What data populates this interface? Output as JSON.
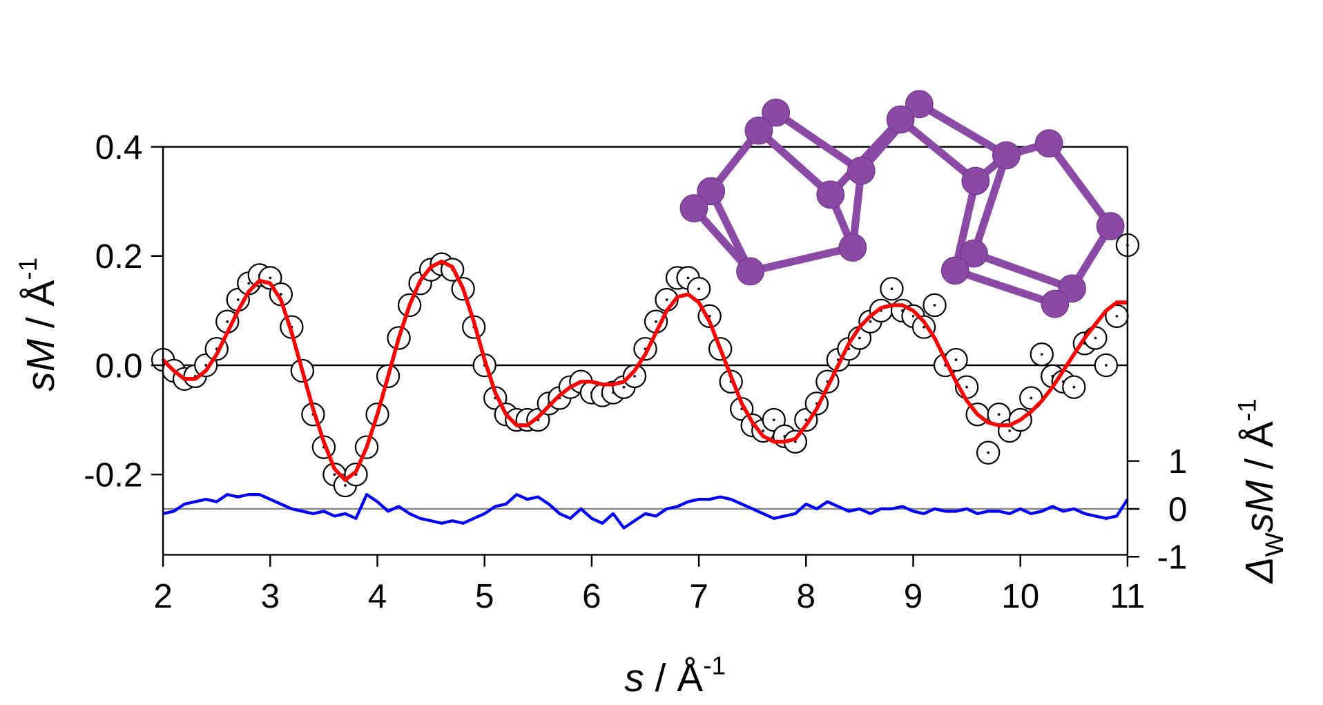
{
  "chart_data": {
    "type": "scatter",
    "x_label": {
      "italic": "s",
      "unit": " / Å",
      "exponent": "-1"
    },
    "y_label": {
      "italic": "sM",
      "unit": " / Å",
      "exponent": "-1"
    },
    "y2_label": {
      "symbol": "Δ",
      "subscript": "W",
      "italic": "sM",
      "unit": " / Å",
      "exponent": "-1"
    },
    "xlim": [
      2,
      11
    ],
    "xticks": [
      2,
      3,
      4,
      5,
      6,
      7,
      8,
      9,
      10,
      11
    ],
    "ylim": [
      -0.347,
      0.4
    ],
    "yticks": [
      0.4,
      0.2,
      {
        "value": 0,
        "label": "0.0"
      },
      -0.2
    ],
    "y2lim": [
      -0.96,
      7.57
    ],
    "y2ticks": [
      1,
      0,
      -1
    ],
    "x": [
      2.0,
      2.1,
      2.2,
      2.3,
      2.4,
      2.5,
      2.6,
      2.7,
      2.8,
      2.9,
      3.0,
      3.1,
      3.2,
      3.3,
      3.4,
      3.5,
      3.6,
      3.7,
      3.8,
      3.9,
      4.0,
      4.1,
      4.2,
      4.3,
      4.4,
      4.5,
      4.6,
      4.7,
      4.8,
      4.9,
      5.0,
      5.1,
      5.2,
      5.3,
      5.4,
      5.5,
      5.6,
      5.7,
      5.8,
      5.9,
      6.0,
      6.1,
      6.2,
      6.3,
      6.4,
      6.5,
      6.6,
      6.7,
      6.8,
      6.9,
      7.0,
      7.1,
      7.2,
      7.3,
      7.4,
      7.5,
      7.6,
      7.7,
      7.8,
      7.9,
      8.0,
      8.1,
      8.2,
      8.3,
      8.4,
      8.5,
      8.6,
      8.7,
      8.8,
      8.9,
      9.0,
      9.1,
      9.2,
      9.3,
      9.4,
      9.5,
      9.6,
      9.7,
      9.8,
      9.9,
      10.0,
      10.1,
      10.2,
      10.3,
      10.4,
      10.5,
      10.6,
      10.7,
      10.8,
      10.9,
      11.0
    ],
    "series": [
      {
        "style": "circles",
        "color": "#000000",
        "values": [
          0.01,
          -0.01,
          -0.025,
          -0.02,
          0.0,
          0.03,
          0.08,
          0.12,
          0.15,
          0.165,
          0.16,
          0.13,
          0.07,
          -0.01,
          -0.09,
          -0.15,
          -0.2,
          -0.22,
          -0.2,
          -0.15,
          -0.09,
          -0.02,
          0.05,
          0.11,
          0.15,
          0.175,
          0.185,
          0.175,
          0.14,
          0.07,
          0.0,
          -0.06,
          -0.09,
          -0.1,
          -0.1,
          -0.1,
          -0.07,
          -0.06,
          -0.04,
          -0.03,
          -0.05,
          -0.055,
          -0.05,
          -0.04,
          -0.02,
          0.03,
          0.08,
          0.12,
          0.16,
          0.16,
          0.14,
          0.09,
          0.03,
          -0.03,
          -0.08,
          -0.11,
          -0.12,
          -0.1,
          -0.13,
          -0.14,
          -0.1,
          -0.07,
          -0.03,
          0.01,
          0.03,
          0.05,
          0.08,
          0.1,
          0.14,
          0.1,
          0.09,
          0.07,
          0.11,
          0.0,
          0.01,
          -0.04,
          -0.09,
          -0.16,
          -0.09,
          -0.12,
          -0.1,
          -0.06,
          0.02,
          -0.02,
          -0.03,
          -0.04,
          0.04,
          0.05,
          0.0,
          0.09,
          0.22
        ]
      },
      {
        "style": "line",
        "color": "#ff0000",
        "values": [
          0.01,
          -0.01,
          -0.025,
          -0.025,
          -0.01,
          0.02,
          0.06,
          0.1,
          0.135,
          0.155,
          0.15,
          0.12,
          0.06,
          -0.01,
          -0.08,
          -0.14,
          -0.19,
          -0.21,
          -0.195,
          -0.15,
          -0.09,
          -0.02,
          0.05,
          0.11,
          0.155,
          0.18,
          0.19,
          0.18,
          0.14,
          0.08,
          0.01,
          -0.05,
          -0.09,
          -0.11,
          -0.11,
          -0.095,
          -0.075,
          -0.055,
          -0.04,
          -0.03,
          -0.03,
          -0.035,
          -0.035,
          -0.03,
          -0.01,
          0.02,
          0.06,
          0.1,
          0.125,
          0.13,
          0.115,
          0.08,
          0.03,
          -0.02,
          -0.07,
          -0.105,
          -0.13,
          -0.14,
          -0.14,
          -0.135,
          -0.11,
          -0.08,
          -0.04,
          0.0,
          0.04,
          0.07,
          0.09,
          0.105,
          0.11,
          0.11,
          0.1,
          0.08,
          0.05,
          0.01,
          -0.03,
          -0.065,
          -0.09,
          -0.105,
          -0.11,
          -0.11,
          -0.1,
          -0.085,
          -0.065,
          -0.04,
          -0.01,
          0.02,
          0.05,
          0.075,
          0.1,
          0.115,
          0.115
        ]
      },
      {
        "style": "line",
        "axis": "y2",
        "color": "#0000ff",
        "values": [
          -0.1,
          -0.05,
          0.1,
          0.15,
          0.2,
          0.15,
          0.3,
          0.25,
          0.3,
          0.3,
          0.2,
          0.1,
          0.0,
          -0.05,
          -0.1,
          -0.05,
          -0.15,
          -0.1,
          -0.2,
          0.3,
          0.15,
          -0.05,
          0.05,
          -0.1,
          -0.2,
          -0.25,
          -0.3,
          -0.25,
          -0.3,
          -0.2,
          -0.1,
          0.05,
          0.1,
          0.3,
          0.2,
          0.25,
          0.1,
          -0.1,
          -0.2,
          0.0,
          -0.2,
          -0.3,
          -0.1,
          -0.4,
          -0.25,
          -0.1,
          -0.15,
          0.0,
          0.05,
          0.15,
          0.2,
          0.2,
          0.25,
          0.2,
          0.1,
          0.0,
          -0.1,
          -0.2,
          -0.15,
          -0.1,
          0.1,
          0.0,
          0.15,
          0.05,
          -0.05,
          0.0,
          -0.1,
          0.0,
          0.0,
          0.05,
          -0.05,
          -0.1,
          0.0,
          -0.05,
          -0.05,
          0.0,
          -0.1,
          -0.05,
          -0.05,
          -0.1,
          0.0,
          -0.1,
          -0.05,
          0.05,
          -0.05,
          0.0,
          -0.1,
          -0.15,
          -0.2,
          -0.15,
          0.2
        ]
      }
    ]
  }
}
